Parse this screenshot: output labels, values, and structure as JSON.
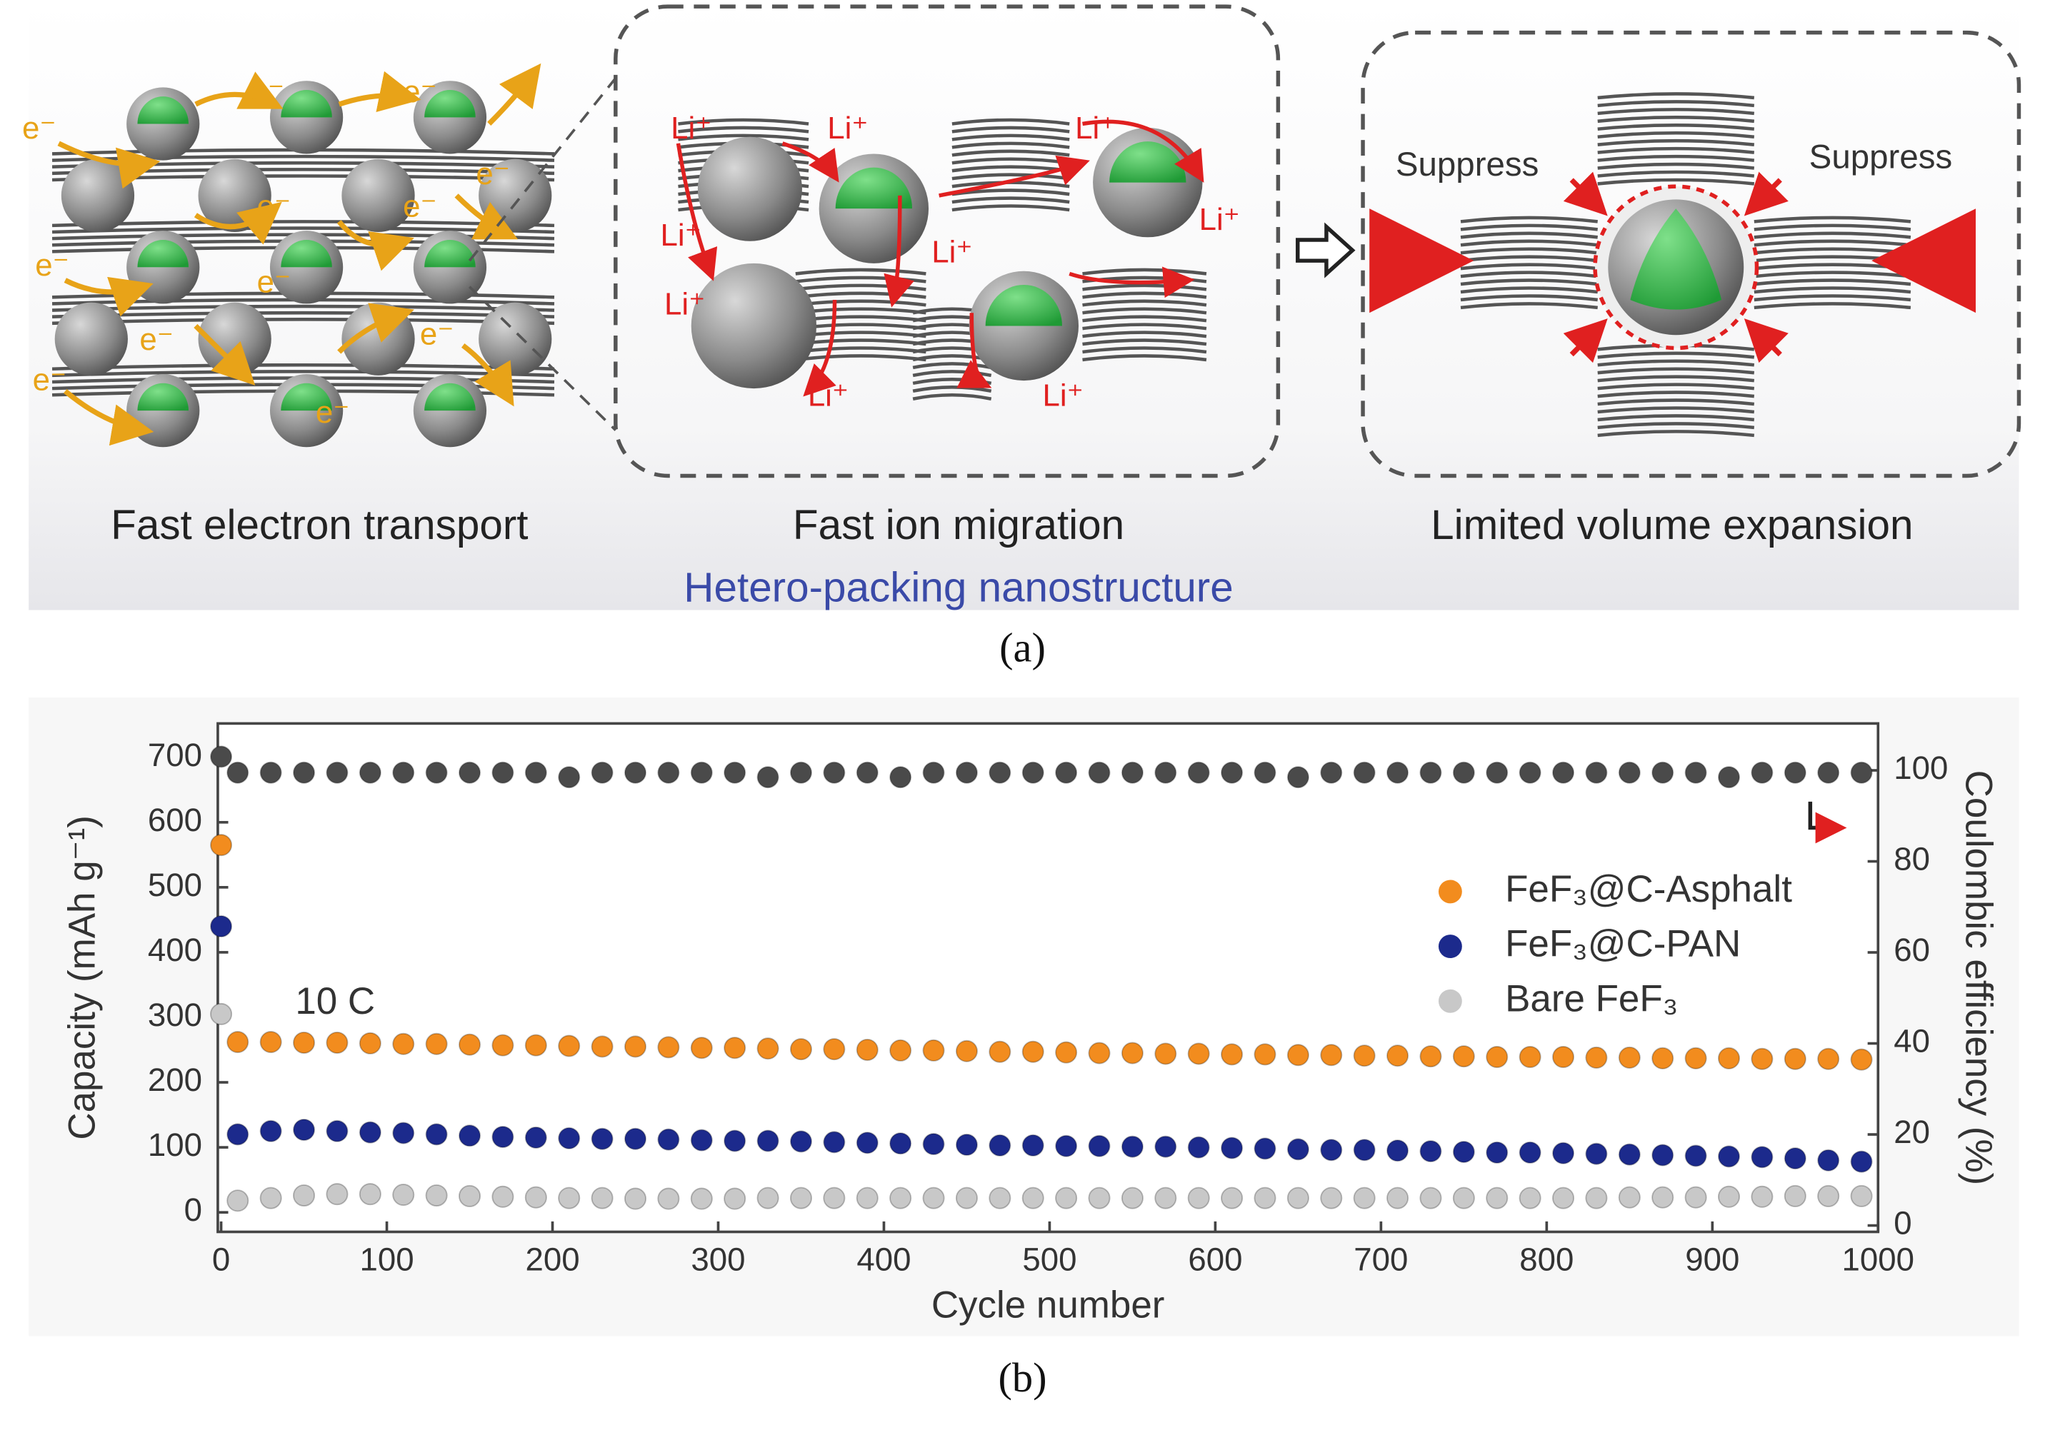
{
  "panel_a": {
    "captions": [
      "Fast electron transport",
      "Fast ion migration",
      "Limited volume expansion"
    ],
    "subtitle": "Hetero-packing nanostructure",
    "suppress_labels": [
      "Suppress",
      "Suppress"
    ],
    "ion_labels": [
      "Li⁺",
      "Li⁺",
      "Li⁺",
      "Li⁺",
      "Li⁺",
      "Li⁺",
      "Li⁺",
      "Li⁺",
      "Li⁺"
    ],
    "electron_labels": [
      "e⁻",
      "e⁻",
      "e⁻",
      "e⁻",
      "e⁻",
      "e⁻",
      "e⁻",
      "e⁻",
      "e⁻",
      "e⁻",
      "e⁻",
      "e⁻"
    ],
    "label": "(a)"
  },
  "chart_label": "(b)",
  "chart_data": {
    "type": "scatter",
    "annotation": "10 C",
    "xlabel": "Cycle number",
    "ylabel": "Capacity (mAh g⁻¹)",
    "y2label": "Coulombic efficiency (%)",
    "x": [
      0,
      10,
      30,
      50,
      70,
      90,
      110,
      130,
      150,
      170,
      190,
      210,
      230,
      250,
      270,
      290,
      310,
      330,
      350,
      370,
      390,
      410,
      430,
      450,
      470,
      490,
      510,
      530,
      550,
      570,
      590,
      610,
      630,
      650,
      670,
      690,
      710,
      730,
      750,
      770,
      790,
      810,
      830,
      850,
      870,
      890,
      910,
      930,
      950,
      970,
      990
    ],
    "xlim": [
      -2,
      1000
    ],
    "xticks": [
      0,
      100,
      200,
      300,
      400,
      500,
      600,
      700,
      800,
      900,
      1000
    ],
    "ylim": [
      -30,
      752
    ],
    "yticks": [
      0,
      100,
      200,
      300,
      400,
      500,
      600,
      700
    ],
    "y2lim": [
      -1.4,
      110.3
    ],
    "y2ticks": [
      0,
      20,
      40,
      60,
      80,
      100
    ],
    "legend": "center right",
    "grid": false,
    "series": [
      {
        "name": "FeF₃@C-Asphalt",
        "color": "#f28c1e",
        "values": [
          565,
          262,
          262,
          261,
          261,
          260,
          259,
          259,
          258,
          257,
          257,
          256,
          255,
          255,
          254,
          253,
          253,
          252,
          251,
          251,
          250,
          249,
          249,
          248,
          247,
          247,
          246,
          245,
          245,
          244,
          244,
          243,
          243,
          242,
          242,
          241,
          241,
          240,
          240,
          239,
          239,
          239,
          238,
          238,
          237,
          237,
          237,
          236,
          236,
          236,
          235
        ]
      },
      {
        "name": "FeF₃@C-PAN",
        "color": "#1c2a8c",
        "values": [
          440,
          120,
          125,
          127,
          125,
          123,
          122,
          120,
          118,
          116,
          115,
          114,
          113,
          113,
          112,
          111,
          110,
          110,
          109,
          108,
          107,
          106,
          105,
          104,
          103,
          103,
          102,
          102,
          101,
          101,
          100,
          99,
          98,
          97,
          96,
          96,
          95,
          94,
          93,
          92,
          92,
          91,
          90,
          89,
          88,
          87,
          86,
          85,
          83,
          80,
          78
        ]
      },
      {
        "name": "Bare FeF₃",
        "color": "#c8c8c8",
        "values": [
          305,
          18,
          22,
          26,
          28,
          28,
          27,
          26,
          25,
          24,
          23,
          22,
          22,
          21,
          21,
          21,
          21,
          22,
          22,
          22,
          22,
          22,
          22,
          22,
          22,
          22,
          22,
          22,
          22,
          22,
          22,
          22,
          22,
          22,
          22,
          22,
          22,
          22,
          22,
          22,
          22,
          22,
          22,
          23,
          23,
          23,
          24,
          24,
          25,
          25,
          25
        ]
      },
      {
        "color": "#4a4a4a",
        "axis": "y2",
        "values": [
          103,
          99.5,
          99.5,
          99.5,
          99.5,
          99.5,
          99.5,
          99.5,
          99.5,
          99.5,
          99.5,
          98.5,
          99.5,
          99.5,
          99.5,
          99.5,
          99.5,
          98.5,
          99.5,
          99.5,
          99.5,
          98.5,
          99.5,
          99.5,
          99.5,
          99.5,
          99.5,
          99.5,
          99.5,
          99.5,
          99.5,
          99.5,
          99.5,
          98.5,
          99.5,
          99.5,
          99.5,
          99.5,
          99.5,
          99.5,
          99.5,
          99.5,
          99.5,
          99.5,
          99.5,
          99.5,
          98.5,
          99.5,
          99.5,
          99.5,
          99.5
        ]
      }
    ]
  }
}
